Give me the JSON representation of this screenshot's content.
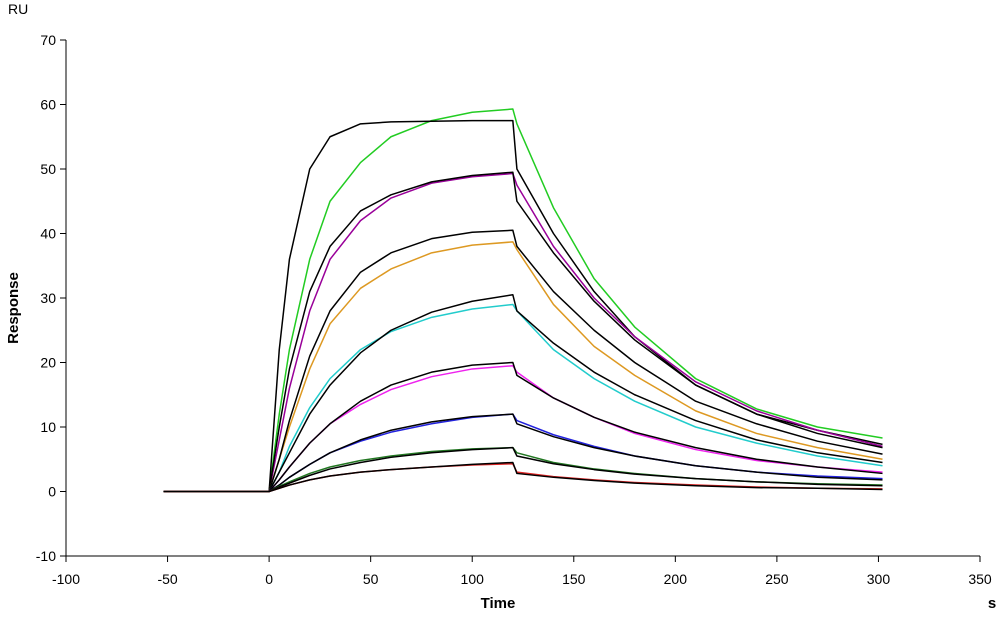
{
  "chart_data": {
    "type": "line",
    "y_unit": "RU",
    "x_unit": "s",
    "x_label": "Time",
    "y_label": "Response",
    "xlim": [
      -100,
      350
    ],
    "ylim": [
      -10,
      70
    ],
    "xticks": [
      -100,
      -50,
      0,
      50,
      100,
      150,
      200,
      250,
      300,
      350
    ],
    "yticks": [
      -10,
      0,
      10,
      20,
      30,
      40,
      50,
      60,
      70
    ],
    "x": [
      -52,
      -20,
      0,
      5,
      10,
      20,
      30,
      45,
      60,
      80,
      100,
      120,
      122,
      140,
      160,
      180,
      210,
      240,
      270,
      302
    ],
    "series": [
      {
        "color": "#22cc22",
        "values": [
          0,
          0,
          0,
          12,
          22,
          36,
          45,
          51,
          55,
          57.5,
          58.8,
          59.3,
          57,
          44,
          33,
          25.5,
          17.5,
          12.8,
          10,
          8.3
        ]
      },
      {
        "color": "#000000",
        "values": [
          0,
          0,
          0,
          22,
          36,
          50,
          55,
          57,
          57.3,
          57.4,
          57.5,
          57.5,
          50,
          40,
          31,
          24,
          16.5,
          12,
          9.5,
          7.3
        ]
      },
      {
        "color": "#990099",
        "values": [
          0,
          0,
          0,
          8,
          16,
          28,
          36,
          42,
          45.5,
          47.8,
          48.8,
          49.3,
          47.5,
          38,
          30,
          24,
          17,
          12.5,
          9.5,
          7
        ]
      },
      {
        "color": "#000000",
        "values": [
          0,
          0,
          0,
          10,
          19,
          31,
          38,
          43.5,
          46,
          48,
          49,
          49.5,
          45,
          37,
          29.5,
          23.5,
          16.5,
          12,
          9,
          6.8
        ]
      },
      {
        "color": "#dd9922",
        "values": [
          0,
          0,
          0,
          5,
          10,
          19,
          26,
          31.5,
          34.5,
          37,
          38.2,
          38.7,
          37.5,
          29,
          22.5,
          18,
          12.5,
          9,
          6.8,
          5
        ]
      },
      {
        "color": "#000000",
        "values": [
          0,
          0,
          0,
          5,
          11,
          21,
          28,
          34,
          37,
          39.2,
          40.2,
          40.5,
          38,
          31,
          25,
          20,
          14,
          10.5,
          7.8,
          5.8
        ]
      },
      {
        "color": "#22cccc",
        "values": [
          0,
          0,
          0,
          3,
          7,
          13,
          17.5,
          22,
          24.8,
          27,
          28.3,
          29,
          28,
          22,
          17.5,
          14,
          10,
          7.5,
          5.5,
          4
        ]
      },
      {
        "color": "#000000",
        "values": [
          0,
          0,
          0,
          3,
          6,
          12,
          16.5,
          21.5,
          25,
          27.8,
          29.5,
          30.5,
          28,
          23,
          18.5,
          15,
          11,
          8,
          6,
          4.5
        ]
      },
      {
        "color": "#ee22ee",
        "values": [
          0,
          0,
          0,
          1.8,
          3.8,
          7.5,
          10.5,
          13.5,
          15.8,
          17.8,
          19,
          19.5,
          18.5,
          14.5,
          11.5,
          9,
          6.5,
          4.8,
          3.8,
          3
        ]
      },
      {
        "color": "#000000",
        "values": [
          0,
          0,
          0,
          1.8,
          3.8,
          7.5,
          10.5,
          14,
          16.5,
          18.5,
          19.6,
          20,
          18,
          14.5,
          11.5,
          9.2,
          6.8,
          5,
          3.8,
          2.8
        ]
      },
      {
        "color": "#2222dd",
        "values": [
          0,
          0,
          0,
          1,
          2.2,
          4.2,
          6,
          7.8,
          9.2,
          10.5,
          11.5,
          12,
          11,
          8.8,
          7,
          5.5,
          4,
          3,
          2.4,
          2
        ]
      },
      {
        "color": "#000000",
        "values": [
          0,
          0,
          0,
          1,
          2.2,
          4.2,
          6,
          8,
          9.5,
          10.8,
          11.6,
          12,
          10.5,
          8.5,
          6.8,
          5.5,
          4,
          3,
          2.2,
          1.8
        ]
      },
      {
        "color": "#227722",
        "values": [
          0,
          0,
          0,
          0.8,
          1.5,
          2.8,
          3.8,
          4.8,
          5.5,
          6.2,
          6.6,
          6.8,
          6,
          4.5,
          3.5,
          2.8,
          2,
          1.5,
          1.2,
          1
        ]
      },
      {
        "color": "#000000",
        "values": [
          0,
          0,
          0,
          0.7,
          1.3,
          2.5,
          3.5,
          4.5,
          5.3,
          6,
          6.5,
          6.8,
          5.5,
          4.3,
          3.4,
          2.7,
          2,
          1.5,
          1.1,
          0.9
        ]
      },
      {
        "color": "#dd2222",
        "values": [
          0,
          0,
          0,
          0.5,
          1,
          1.8,
          2.4,
          3,
          3.4,
          3.8,
          4.1,
          4.3,
          3,
          2.3,
          1.8,
          1.4,
          1,
          0.7,
          0.5,
          0.4
        ]
      },
      {
        "color": "#000000",
        "values": [
          0,
          0,
          0,
          0.5,
          1,
          1.8,
          2.4,
          3,
          3.4,
          3.8,
          4.2,
          4.5,
          2.8,
          2.2,
          1.7,
          1.3,
          0.9,
          0.6,
          0.5,
          0.3
        ]
      }
    ]
  }
}
